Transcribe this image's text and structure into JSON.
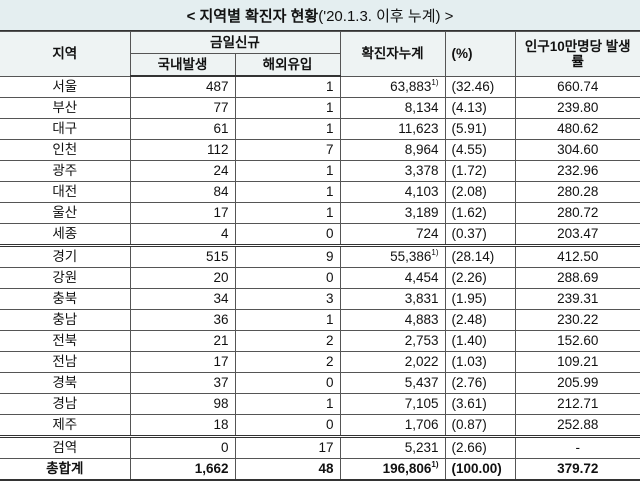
{
  "title": {
    "main": "< 지역별 확진자 현황",
    "sub": "('20.1.3. 이후 누계) >"
  },
  "headers": {
    "region": "지역",
    "new_today": "금일신규",
    "domestic": "국내발생",
    "imported": "해외유입",
    "cumulative": "확진자누계",
    "percent": "(%)",
    "rate": "인구10만명당 발생률"
  },
  "rows": [
    {
      "region": "서울",
      "domestic": "487",
      "imported": "1",
      "cumulative": "63,883",
      "note": "1)",
      "percent": "(32.46)",
      "rate": "660.74"
    },
    {
      "region": "부산",
      "domestic": "77",
      "imported": "1",
      "cumulative": "8,134",
      "note": "",
      "percent": "(4.13)",
      "rate": "239.80"
    },
    {
      "region": "대구",
      "domestic": "61",
      "imported": "1",
      "cumulative": "11,623",
      "note": "",
      "percent": "(5.91)",
      "rate": "480.62"
    },
    {
      "region": "인천",
      "domestic": "112",
      "imported": "7",
      "cumulative": "8,964",
      "note": "",
      "percent": "(4.55)",
      "rate": "304.60"
    },
    {
      "region": "광주",
      "domestic": "24",
      "imported": "1",
      "cumulative": "3,378",
      "note": "",
      "percent": "(1.72)",
      "rate": "232.96"
    },
    {
      "region": "대전",
      "domestic": "84",
      "imported": "1",
      "cumulative": "4,103",
      "note": "",
      "percent": "(2.08)",
      "rate": "280.28"
    },
    {
      "region": "울산",
      "domestic": "17",
      "imported": "1",
      "cumulative": "3,189",
      "note": "",
      "percent": "(1.62)",
      "rate": "280.72"
    },
    {
      "region": "세종",
      "domestic": "4",
      "imported": "0",
      "cumulative": "724",
      "note": "",
      "percent": "(0.37)",
      "rate": "203.47"
    },
    {
      "region": "경기",
      "domestic": "515",
      "imported": "9",
      "cumulative": "55,386",
      "note": "1)",
      "percent": "(28.14)",
      "rate": "412.50"
    },
    {
      "region": "강원",
      "domestic": "20",
      "imported": "0",
      "cumulative": "4,454",
      "note": "",
      "percent": "(2.26)",
      "rate": "288.69"
    },
    {
      "region": "충북",
      "domestic": "34",
      "imported": "3",
      "cumulative": "3,831",
      "note": "",
      "percent": "(1.95)",
      "rate": "239.31"
    },
    {
      "region": "충남",
      "domestic": "36",
      "imported": "1",
      "cumulative": "4,883",
      "note": "",
      "percent": "(2.48)",
      "rate": "230.22"
    },
    {
      "region": "전북",
      "domestic": "21",
      "imported": "2",
      "cumulative": "2,753",
      "note": "",
      "percent": "(1.40)",
      "rate": "152.60"
    },
    {
      "region": "전남",
      "domestic": "17",
      "imported": "2",
      "cumulative": "2,022",
      "note": "",
      "percent": "(1.03)",
      "rate": "109.21"
    },
    {
      "region": "경북",
      "domestic": "37",
      "imported": "0",
      "cumulative": "5,437",
      "note": "",
      "percent": "(2.76)",
      "rate": "205.99"
    },
    {
      "region": "경남",
      "domestic": "98",
      "imported": "1",
      "cumulative": "7,105",
      "note": "",
      "percent": "(3.61)",
      "rate": "212.71"
    },
    {
      "region": "제주",
      "domestic": "18",
      "imported": "0",
      "cumulative": "1,706",
      "note": "",
      "percent": "(0.87)",
      "rate": "252.88"
    },
    {
      "region": "검역",
      "domestic": "0",
      "imported": "17",
      "cumulative": "5,231",
      "note": "",
      "percent": "(2.66)",
      "rate": "-"
    },
    {
      "region": "총합계",
      "domestic": "1,662",
      "imported": "48",
      "cumulative": "196,806",
      "note": "1)",
      "percent": "(100.00)",
      "rate": "379.72"
    }
  ]
}
